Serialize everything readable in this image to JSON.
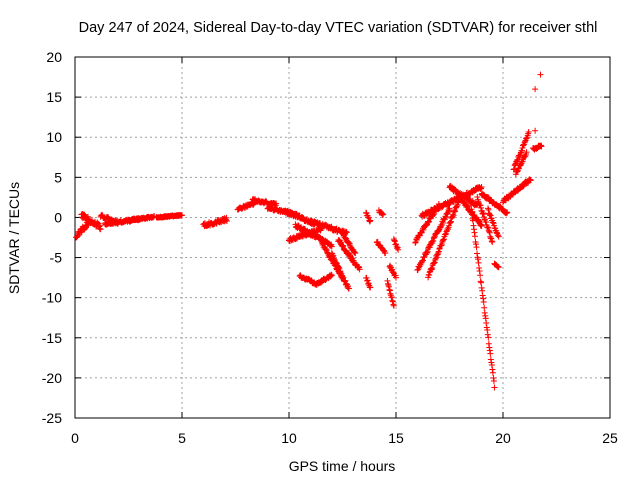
{
  "chart_data": {
    "type": "scatter",
    "title": "Day 247 of 2024, Sidereal Day-to-day VTEC variation (SDTVAR) for receiver sthl",
    "xlabel": "GPS time / hours",
    "ylabel": "SDTVAR / TECUs",
    "xlim": [
      0,
      25
    ],
    "ylim": [
      -25,
      20
    ],
    "xticks": [
      "0",
      "5",
      "10",
      "15",
      "20",
      "25"
    ],
    "yticks": [
      "20",
      "15",
      "10",
      "5",
      "0",
      "-5",
      "-10",
      "-15",
      "-20",
      "-25"
    ],
    "grid": true,
    "marker": "+",
    "color": "#ff0000",
    "segments": [
      {
        "t0": 0.05,
        "t1": 0.7,
        "y0": -2.3,
        "y1": -0.5,
        "noise": 0.6
      },
      {
        "t0": 0.3,
        "t1": 1.2,
        "y0": 0.3,
        "y1": -1.2,
        "noise": 0.6
      },
      {
        "t0": 1.2,
        "t1": 2.0,
        "y0": 0.2,
        "y1": -0.6,
        "noise": 0.4
      },
      {
        "t0": 1.4,
        "t1": 3.0,
        "y0": -0.8,
        "y1": -0.2,
        "noise": 0.3
      },
      {
        "t0": 2.5,
        "t1": 3.7,
        "y0": -0.4,
        "y1": 0.1,
        "noise": 0.2
      },
      {
        "t0": 3.8,
        "t1": 5.0,
        "y0": 0.0,
        "y1": 0.3,
        "noise": 0.15
      },
      {
        "t0": 6.0,
        "t1": 7.1,
        "y0": -1.0,
        "y1": -0.2,
        "noise": 0.5
      },
      {
        "t0": 7.6,
        "t1": 8.4,
        "y0": 1.0,
        "y1": 1.8,
        "noise": 0.3
      },
      {
        "t0": 8.3,
        "t1": 9.4,
        "y0": 2.2,
        "y1": 1.6,
        "noise": 0.3
      },
      {
        "t0": 9.0,
        "t1": 10.5,
        "y0": 1.2,
        "y1": 0.2,
        "noise": 0.3
      },
      {
        "t0": 9.8,
        "t1": 11.2,
        "y0": 0.8,
        "y1": -0.8,
        "noise": 0.4
      },
      {
        "t0": 10.0,
        "t1": 11.5,
        "y0": -2.8,
        "y1": -1.5,
        "noise": 0.4
      },
      {
        "t0": 10.3,
        "t1": 12.0,
        "y0": -1.0,
        "y1": -3.5,
        "noise": 0.4
      },
      {
        "t0": 10.5,
        "t1": 11.3,
        "y0": -7.3,
        "y1": -8.3,
        "noise": 0.3
      },
      {
        "t0": 11.3,
        "t1": 12.0,
        "y0": -8.3,
        "y1": -7.2,
        "noise": 0.3
      },
      {
        "t0": 11.0,
        "t1": 12.7,
        "y0": -0.5,
        "y1": -2.0,
        "noise": 0.4
      },
      {
        "t0": 11.5,
        "t1": 12.5,
        "y0": -3.0,
        "y1": -7.5,
        "noise": 0.4
      },
      {
        "t0": 12.0,
        "t1": 12.8,
        "y0": -4.5,
        "y1": -9.0,
        "noise": 0.4
      },
      {
        "t0": 12.3,
        "t1": 13.3,
        "y0": -2.8,
        "y1": -6.5,
        "noise": 0.4
      },
      {
        "t0": 12.5,
        "t1": 13.1,
        "y0": -2.0,
        "y1": -4.5,
        "noise": 0.3
      },
      {
        "t0": 13.6,
        "t1": 13.8,
        "y0": 0.6,
        "y1": -0.5,
        "noise": 0.3
      },
      {
        "t0": 13.6,
        "t1": 13.8,
        "y0": -7.5,
        "y1": -8.8,
        "noise": 0.3
      },
      {
        "t0": 14.1,
        "t1": 14.5,
        "y0": -3.0,
        "y1": -4.5,
        "noise": 0.3
      },
      {
        "t0": 14.2,
        "t1": 14.4,
        "y0": 0.8,
        "y1": 0.3,
        "noise": 0.2
      },
      {
        "t0": 14.6,
        "t1": 14.9,
        "y0": -8.0,
        "y1": -11.0,
        "noise": 0.3
      },
      {
        "t0": 14.7,
        "t1": 15.0,
        "y0": -6.0,
        "y1": -7.5,
        "noise": 0.3
      },
      {
        "t0": 14.9,
        "t1": 15.1,
        "y0": -2.8,
        "y1": -4.0,
        "noise": 0.3
      },
      {
        "t0": 15.9,
        "t1": 17.0,
        "y0": -3.0,
        "y1": 1.5,
        "noise": 0.4
      },
      {
        "t0": 16.0,
        "t1": 17.5,
        "y0": -6.5,
        "y1": 1.0,
        "noise": 0.4
      },
      {
        "t0": 16.5,
        "t1": 18.0,
        "y0": -7.5,
        "y1": 2.5,
        "noise": 0.4
      },
      {
        "t0": 16.2,
        "t1": 19.0,
        "y0": 0.2,
        "y1": 3.8,
        "noise": 0.4
      },
      {
        "t0": 17.5,
        "t1": 18.8,
        "y0": 3.8,
        "y1": 1.5,
        "noise": 0.4
      },
      {
        "t0": 18.0,
        "t1": 19.0,
        "y0": 2.5,
        "y1": -1.0,
        "noise": 0.4
      },
      {
        "t0": 18.5,
        "t1": 19.6,
        "y0": 1.5,
        "y1": -21.0,
        "noise": 0.4
      },
      {
        "t0": 18.8,
        "t1": 19.5,
        "y0": 2.5,
        "y1": -3.0,
        "noise": 0.4
      },
      {
        "t0": 19.0,
        "t1": 20.2,
        "y0": 3.0,
        "y1": 0.5,
        "noise": 0.4
      },
      {
        "t0": 19.3,
        "t1": 19.8,
        "y0": 1.0,
        "y1": -2.5,
        "noise": 0.3
      },
      {
        "t0": 19.6,
        "t1": 19.8,
        "y0": -5.8,
        "y1": -6.3,
        "noise": 0.2
      },
      {
        "t0": 20.0,
        "t1": 21.3,
        "y0": 2.0,
        "y1": 4.8,
        "noise": 0.4
      },
      {
        "t0": 20.5,
        "t1": 21.2,
        "y0": 6.0,
        "y1": 10.5,
        "noise": 0.4
      },
      {
        "t0": 20.6,
        "t1": 21.1,
        "y0": 5.5,
        "y1": 8.0,
        "noise": 0.3
      },
      {
        "t0": 21.4,
        "t1": 21.8,
        "y0": 8.5,
        "y1": 9.0,
        "noise": 0.3
      }
    ],
    "points": [
      [
        21.5,
        10.8
      ],
      [
        21.5,
        16.0
      ],
      [
        21.75,
        17.8
      ]
    ]
  }
}
